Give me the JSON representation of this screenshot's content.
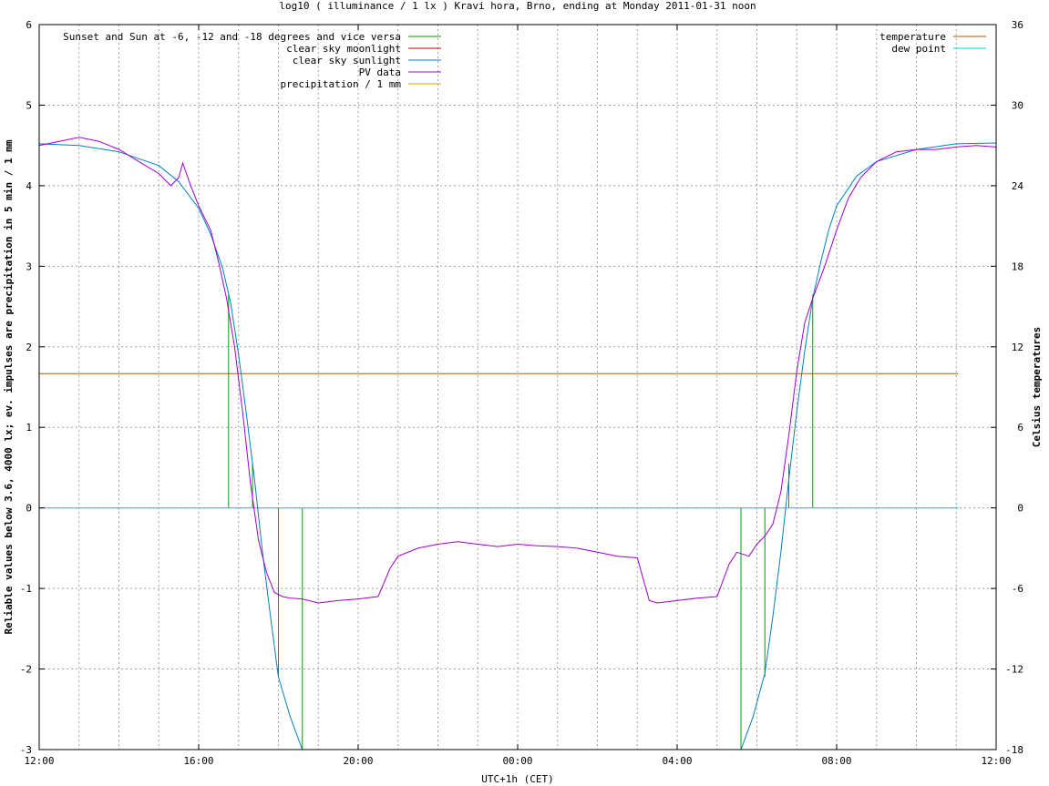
{
  "chart_data": {
    "type": "line",
    "title": "log10 ( illuminance / 1 lx ) Kravi hora, Brno, ending at Monday 2011-01-31 noon",
    "xlabel": "UTC+1h (CET)",
    "ylabel": "Reliable values below 3.6, 4000 lx; ev. impulses are precipitation in 5 min / 1 mm",
    "y2label": "Celsius temperatures",
    "xlim": [
      0,
      24
    ],
    "ylim": [
      -3,
      6
    ],
    "y2lim": [
      -18,
      36
    ],
    "x_ticks": [
      "12:00",
      "16:00",
      "20:00",
      "00:00",
      "04:00",
      "08:00",
      "12:00"
    ],
    "y_ticks": [
      "-3",
      "-2",
      "-1",
      "0",
      "1",
      "2",
      "3",
      "4",
      "5",
      "6"
    ],
    "y2_ticks": [
      "-18",
      "-12",
      "-6",
      "0",
      "6",
      "12",
      "18",
      "24",
      "30",
      "36"
    ],
    "grid": true,
    "legend_left": [
      {
        "name": "Sunset and Sun at -6, -12 and -18 degrees and vice versa",
        "color": "#00a000"
      },
      {
        "name": "clear sky moonlight",
        "color": "#cc0000"
      },
      {
        "name": "clear sky sunlight",
        "color": "#0080c0"
      },
      {
        "name": "PV data",
        "color": "#a000d0"
      },
      {
        "name": "precipitation / 1 mm",
        "color": "#e0a000"
      }
    ],
    "legend_right": [
      {
        "name": "temperature",
        "color": "#b05a00"
      },
      {
        "name": "dew point",
        "color": "#00d0d0"
      }
    ],
    "sun_event_hours": [
      4.75,
      5.35,
      6.0,
      6.6,
      17.6,
      18.2,
      18.8,
      19.4
    ],
    "sun_event_tops": [
      2.65,
      0.55,
      -2.1,
      -3.0,
      -3.0,
      -2.1,
      0.55,
      2.65
    ],
    "clear_sky_sunlight": {
      "x": [
        0,
        1,
        2,
        3,
        3.5,
        4,
        4.3,
        4.6,
        4.8,
        5.0,
        5.2,
        5.4,
        5.6,
        5.8,
        6.0,
        6.3,
        6.6,
        17.6,
        17.9,
        18.2,
        18.4,
        18.6,
        18.8,
        19.0,
        19.2,
        19.4,
        19.6,
        19.8,
        20.0,
        20.5,
        21,
        22,
        23,
        24
      ],
      "y": [
        4.52,
        4.5,
        4.42,
        4.25,
        4.05,
        3.72,
        3.4,
        2.98,
        2.55,
        1.9,
        1.15,
        0.35,
        -0.55,
        -1.35,
        -2.1,
        -2.6,
        -3.0,
        -3.0,
        -2.6,
        -2.05,
        -1.35,
        -0.55,
        0.35,
        1.2,
        1.95,
        2.6,
        3.05,
        3.45,
        3.75,
        4.12,
        4.3,
        4.45,
        4.52,
        4.53
      ]
    },
    "pv_data": {
      "x": [
        0,
        0.5,
        1,
        1.5,
        2,
        2.5,
        3,
        3.3,
        3.5,
        3.6,
        3.8,
        4.0,
        4.3,
        4.5,
        4.7,
        4.9,
        5.1,
        5.3,
        5.5,
        5.7,
        5.9,
        6.1,
        6.3,
        6.6,
        7.0,
        7.5,
        8.0,
        8.5,
        8.8,
        9.0,
        9.5,
        10.0,
        10.5,
        11.0,
        11.5,
        12.0,
        12.5,
        13.0,
        13.5,
        14.0,
        14.5,
        15.0,
        15.3,
        15.5,
        16.0,
        16.5,
        17.0,
        17.3,
        17.5,
        17.8,
        18.0,
        18.2,
        18.4,
        18.6,
        18.8,
        19.0,
        19.2,
        19.4,
        19.7,
        20.0,
        20.3,
        20.6,
        21.0,
        21.5,
        22.0,
        22.5,
        23.0,
        23.5,
        24.0
      ],
      "y": [
        4.5,
        4.55,
        4.6,
        4.55,
        4.45,
        4.3,
        4.15,
        4.0,
        4.1,
        4.28,
        4.0,
        3.75,
        3.45,
        3.05,
        2.6,
        2.0,
        1.2,
        0.3,
        -0.4,
        -0.8,
        -1.05,
        -1.1,
        -1.12,
        -1.13,
        -1.18,
        -1.15,
        -1.13,
        -1.1,
        -0.75,
        -0.6,
        -0.5,
        -0.45,
        -0.42,
        -0.45,
        -0.48,
        -0.45,
        -0.47,
        -0.48,
        -0.5,
        -0.55,
        -0.6,
        -0.62,
        -1.15,
        -1.18,
        -1.15,
        -1.12,
        -1.1,
        -0.7,
        -0.55,
        -0.6,
        -0.45,
        -0.35,
        -0.2,
        0.2,
        0.9,
        1.7,
        2.3,
        2.6,
        3.0,
        3.45,
        3.85,
        4.1,
        4.3,
        4.42,
        4.45,
        4.45,
        4.48,
        4.5,
        4.48
      ]
    },
    "temperature": {
      "x": [
        0,
        23.05
      ],
      "y": [
        10.0,
        10.0
      ]
    },
    "dew_point": {
      "x": [
        0,
        23.05
      ],
      "y": [
        0,
        0
      ]
    }
  }
}
